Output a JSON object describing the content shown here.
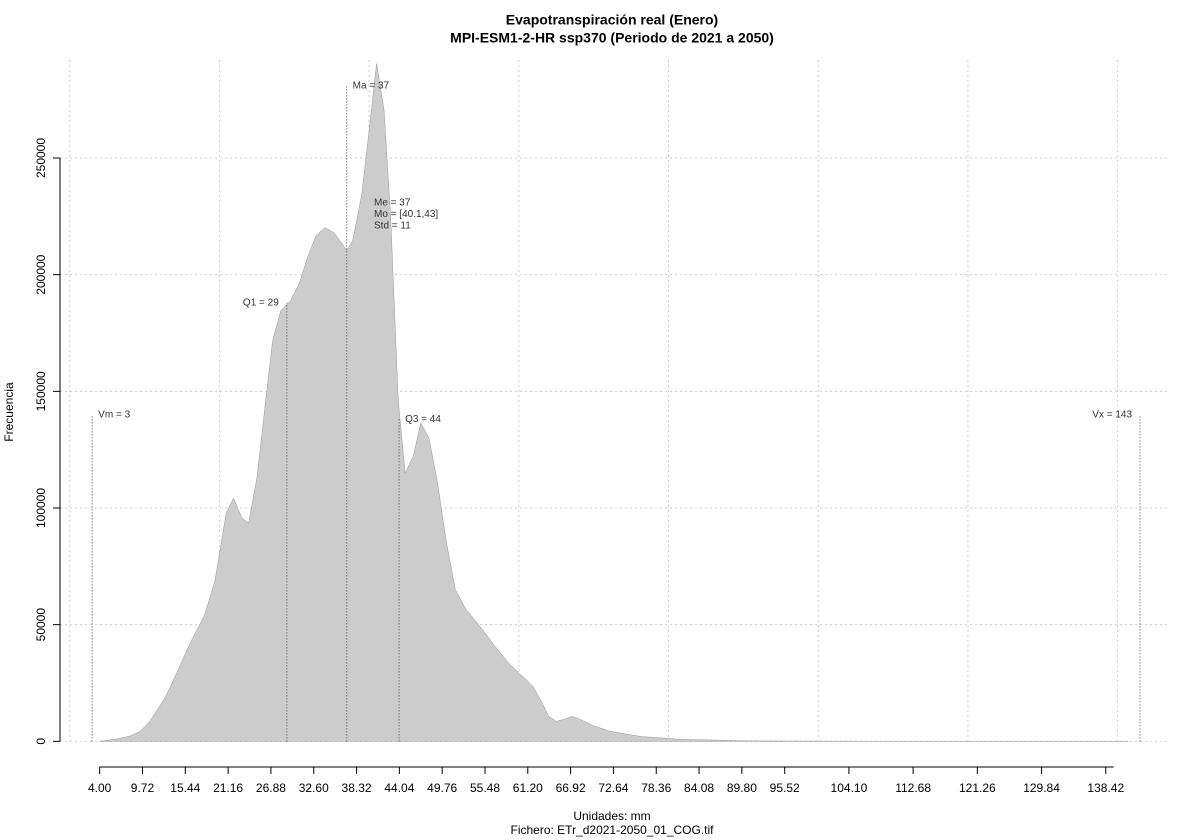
{
  "chart_data": {
    "type": "area",
    "title": "Evapotranspiración real (Enero)",
    "subtitle": "MPI-ESM1-2-HR ssp370 (Periodo de 2021 a 2050)",
    "x_label": "Unidades: mm",
    "y_label": "Frecuencia",
    "footer": "Fichero: ETr_d2021-2050_01_COG.tif",
    "color": "#cccccc",
    "x": [
      4,
      6,
      8,
      9.4,
      10.7,
      12.7,
      14.4,
      16.0,
      18.0,
      19.4,
      20.9,
      21.9,
      23.0,
      23.9,
      25.0,
      26.1,
      27.1,
      28.2,
      29.5,
      30.7,
      31.8,
      32.9,
      34.1,
      35.3,
      36.5,
      37.0,
      37.8,
      39.0,
      40.0,
      41.0,
      42.0,
      42.9,
      43.9,
      44.8,
      45.9,
      46.9,
      48.0,
      49.1,
      50.3,
      51.5,
      52.9,
      54.8,
      56.8,
      58.8,
      60.8,
      61.9,
      63.0,
      64.0,
      65.0,
      66.0,
      67.1,
      68.2,
      69.8,
      72.2,
      76.2,
      81.6,
      90.9,
      111,
      141.4
    ],
    "values": [
      0,
      860,
      2150,
      4300,
      8600,
      18500,
      30000,
      41600,
      54000,
      68700,
      97900,
      104300,
      95700,
      93600,
      112900,
      143800,
      171700,
      184600,
      188800,
      196600,
      207700,
      216700,
      220200,
      218000,
      212900,
      210300,
      214600,
      233900,
      261800,
      290500,
      270400,
      223200,
      145900,
      115000,
      122300,
      136500,
      130000,
      111600,
      85800,
      65200,
      56700,
      49400,
      40800,
      33000,
      27000,
      23600,
      17200,
      10700,
      8600,
      9400,
      10700,
      9400,
      6900,
      4300,
      2100,
      860,
      200,
      0,
      0
    ],
    "xlim": [
      -1.3,
      147
    ],
    "ylim": [
      -11000,
      292000
    ],
    "xticks": [
      {
        "value": 4.0,
        "label": "4.00"
      },
      {
        "value": 9.72,
        "label": "9.72"
      },
      {
        "value": 15.44,
        "label": "15.44"
      },
      {
        "value": 21.16,
        "label": "21.16"
      },
      {
        "value": 26.88,
        "label": "26.88"
      },
      {
        "value": 32.6,
        "label": "32.60"
      },
      {
        "value": 38.32,
        "label": "38.32"
      },
      {
        "value": 44.04,
        "label": "44.04"
      },
      {
        "value": 49.76,
        "label": "49.76"
      },
      {
        "value": 55.48,
        "label": "55.48"
      },
      {
        "value": 61.2,
        "label": "61.20"
      },
      {
        "value": 66.92,
        "label": "66.92"
      },
      {
        "value": 72.64,
        "label": "72.64"
      },
      {
        "value": 78.36,
        "label": "78.36"
      },
      {
        "value": 84.08,
        "label": "84.08"
      },
      {
        "value": 89.8,
        "label": "89.80"
      },
      {
        "value": 95.52,
        "label": "95.52"
      },
      {
        "value": 104.1,
        "label": "104.10"
      },
      {
        "value": 112.68,
        "label": "112.68"
      },
      {
        "value": 121.26,
        "label": "121.26"
      },
      {
        "value": 129.84,
        "label": "129.84"
      },
      {
        "value": 138.42,
        "label": "138.42"
      }
    ],
    "yticks": [
      0,
      50000,
      100000,
      150000,
      200000,
      250000
    ],
    "xgrid": [
      0,
      20,
      40,
      60,
      80,
      100,
      120,
      140
    ],
    "grid": true,
    "annotations": [
      {
        "text": "Vm = 3",
        "x": 3,
        "y": 140000,
        "side": "right"
      },
      {
        "text": "Q1 = 29",
        "x": 29,
        "y": 188000,
        "side": "left"
      },
      {
        "text": "Ma = 37",
        "x": 37,
        "y": 281000,
        "side": "right"
      },
      {
        "text": "Q3 = 44",
        "x": 44,
        "y": 138000,
        "side": "right"
      },
      {
        "text": "Vx = 143",
        "x": 143,
        "y": 140000,
        "side": "left"
      }
    ],
    "stats": [
      "Me = 37",
      "Mo = [40.1,43]",
      "Std = 11"
    ]
  }
}
